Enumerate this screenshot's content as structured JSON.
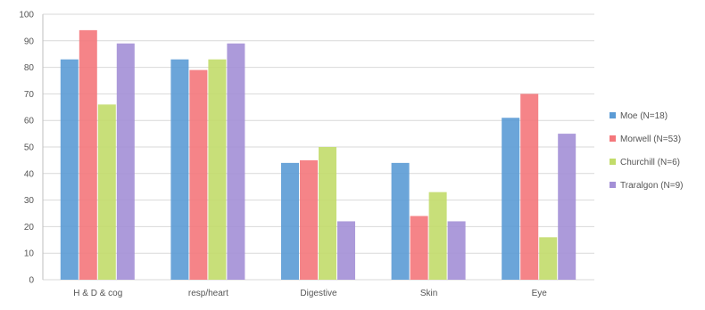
{
  "chart_data": {
    "type": "bar",
    "title": "",
    "xlabel": "",
    "ylabel": "",
    "ylim": [
      0,
      100
    ],
    "yticks": [
      0,
      10,
      20,
      30,
      40,
      50,
      60,
      70,
      80,
      90,
      100
    ],
    "grid": true,
    "legend_position": "right",
    "categories": [
      "H & D & cog",
      "resp/heart",
      "Digestive",
      "Skin",
      "Eye"
    ],
    "series": [
      {
        "name": "Moe (N=18)",
        "color": "#5b9bd5",
        "values": [
          83,
          83,
          44,
          44,
          61
        ]
      },
      {
        "name": "Morwell (N=53)",
        "color": "#f4777b",
        "values": [
          94,
          79,
          45,
          24,
          70
        ]
      },
      {
        "name": "Churchill (N=6)",
        "color": "#c2dc6a",
        "values": [
          66,
          83,
          50,
          33,
          16
        ]
      },
      {
        "name": "Traralgon (N=9)",
        "color": "#a38fd6",
        "values": [
          89,
          89,
          22,
          22,
          55
        ]
      }
    ]
  }
}
